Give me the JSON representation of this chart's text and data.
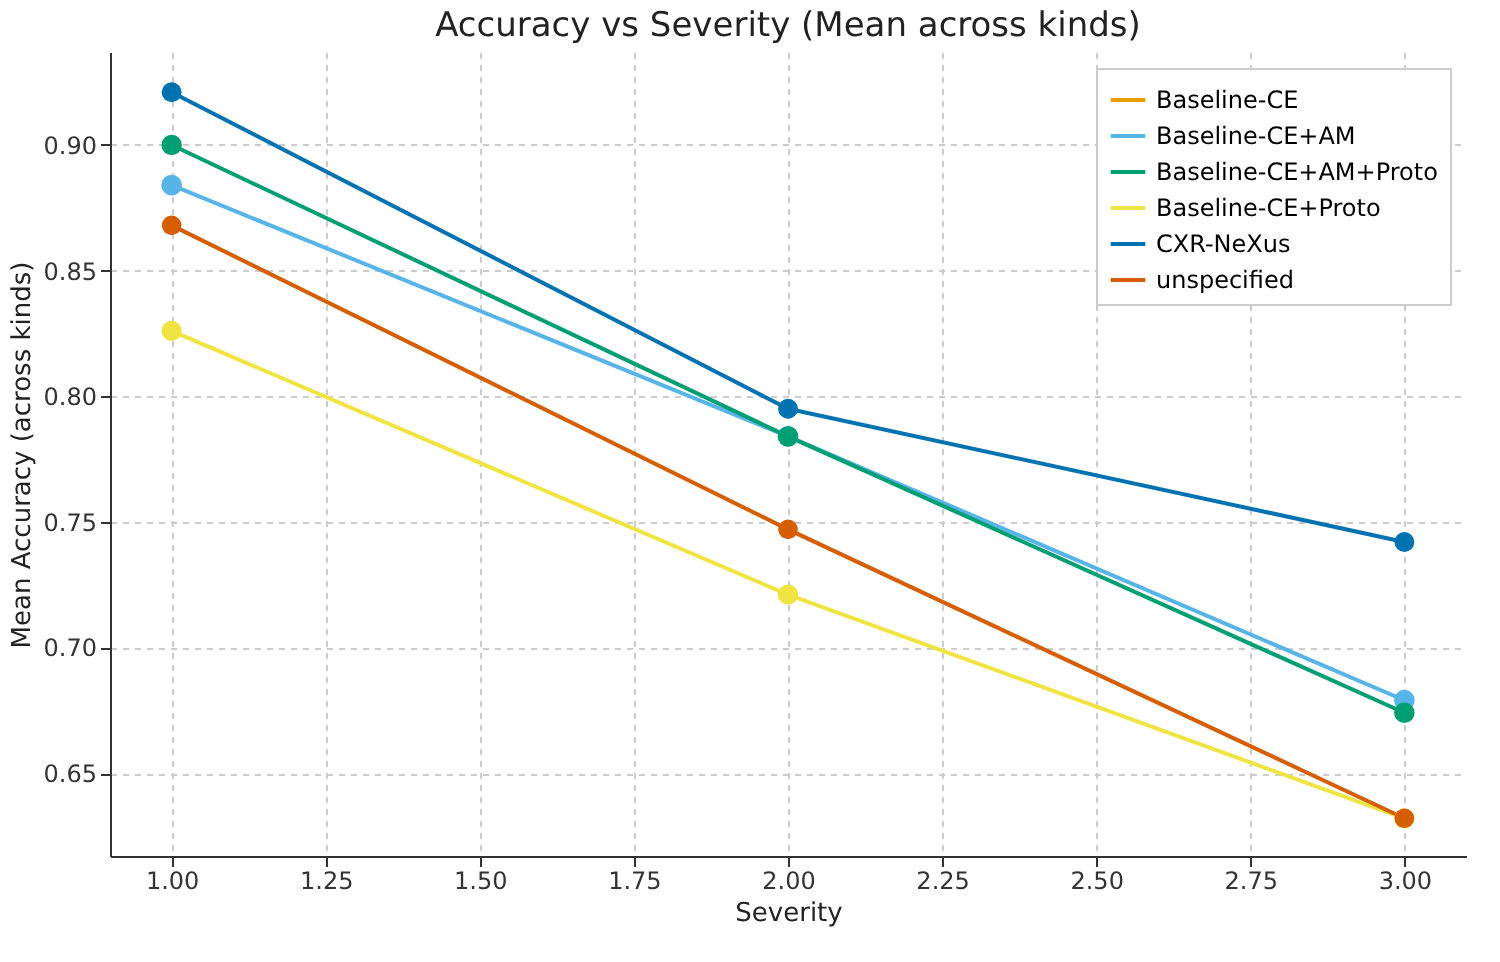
{
  "chart_data": {
    "type": "line",
    "title": "Accuracy vs Severity (Mean across kinds)",
    "xlabel": "Severity",
    "ylabel": "Mean Accuracy (across kinds)",
    "x": [
      1,
      2,
      3
    ],
    "series": [
      {
        "name": "Baseline-CE",
        "color": "#e69f00",
        "values": [
          null,
          null,
          null
        ]
      },
      {
        "name": "Baseline-CE+AM",
        "color": "#56b4e9",
        "values": [
          0.884,
          0.784,
          0.679
        ]
      },
      {
        "name": "Baseline-CE+AM+Proto",
        "color": "#009e73",
        "values": [
          0.9,
          0.784,
          0.674
        ]
      },
      {
        "name": "Baseline-CE+Proto",
        "color": "#f0e442",
        "values": [
          0.826,
          0.721,
          0.632
        ]
      },
      {
        "name": "CXR-NeXus",
        "color": "#0072b2",
        "values": [
          0.921,
          0.795,
          0.742
        ]
      },
      {
        "name": "unspecified",
        "color": "#d55e00",
        "values": [
          0.868,
          0.747,
          0.632
        ]
      }
    ],
    "xlim": [
      0.9,
      3.1
    ],
    "xticks": [
      {
        "value": 1,
        "label": "1.00"
      },
      {
        "value": 1.25,
        "label": "1.25"
      },
      {
        "value": 1.5,
        "label": "1.50"
      },
      {
        "value": 1.75,
        "label": "1.75"
      },
      {
        "value": 2,
        "label": "2.00"
      },
      {
        "value": 2.25,
        "label": "2.25"
      },
      {
        "value": 2.5,
        "label": "2.50"
      },
      {
        "value": 2.75,
        "label": "2.75"
      },
      {
        "value": 3,
        "label": "3.00"
      }
    ],
    "ylim": [
      0.617,
      0.937
    ],
    "yticks": [
      {
        "value": 0.65,
        "label": "0.65"
      },
      {
        "value": 0.7,
        "label": "0.70"
      },
      {
        "value": 0.75,
        "label": "0.75"
      },
      {
        "value": 0.8,
        "label": "0.80"
      },
      {
        "value": 0.85,
        "label": "0.85"
      },
      {
        "value": 0.9,
        "label": "0.90"
      }
    ],
    "grid": true,
    "legend": "top right",
    "marker": "circle",
    "line_style": "solid"
  }
}
